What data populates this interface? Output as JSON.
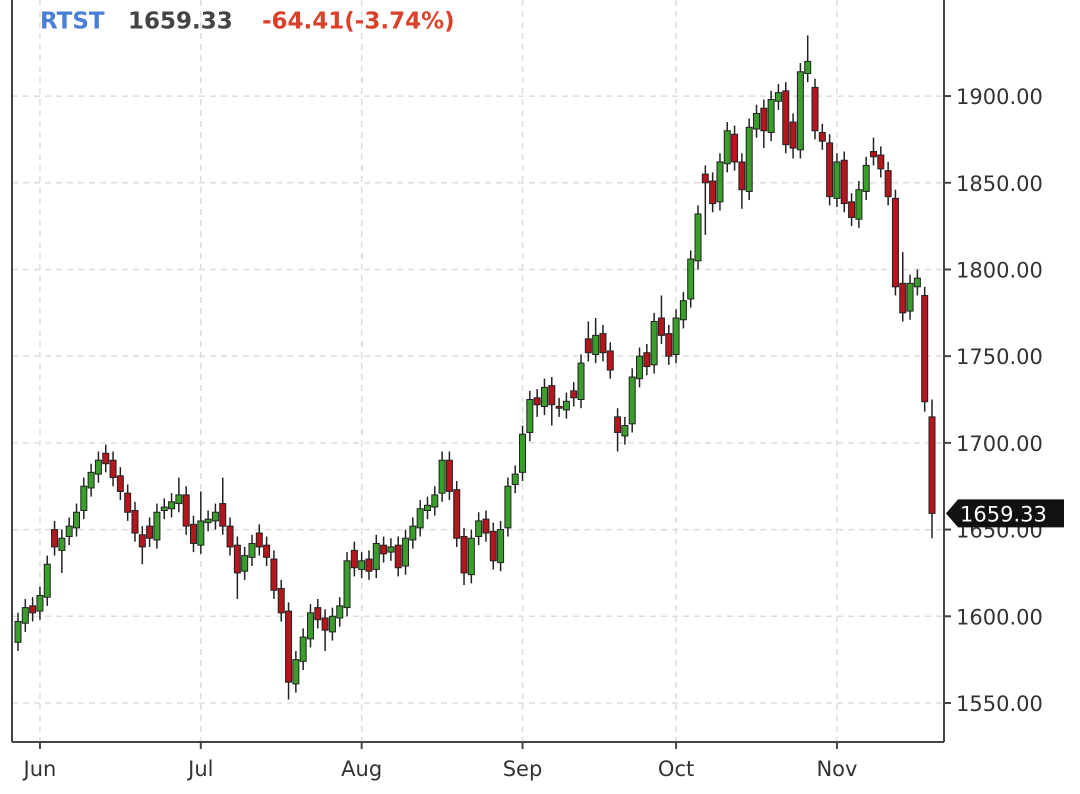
{
  "chart_data": {
    "type": "candlestick",
    "symbol": "RTST",
    "change_label": "-64.41(-3.74%)",
    "categories": [
      null,
      null,
      null,
      "Jun",
      null,
      null,
      null,
      null,
      null,
      null,
      null,
      null,
      null,
      null,
      null,
      null,
      null,
      null,
      null,
      null,
      null,
      null,
      null,
      null,
      null,
      "Jul",
      null,
      null,
      null,
      null,
      null,
      null,
      null,
      null,
      null,
      null,
      null,
      null,
      null,
      null,
      null,
      null,
      null,
      null,
      null,
      null,
      null,
      "Aug",
      null,
      null,
      null,
      null,
      null,
      null,
      null,
      null,
      null,
      null,
      null,
      null,
      null,
      null,
      null,
      null,
      null,
      null,
      null,
      null,
      null,
      "Sep",
      null,
      null,
      null,
      null,
      null,
      null,
      null,
      null,
      null,
      null,
      null,
      null,
      null,
      null,
      null,
      null,
      null,
      null,
      null,
      null,
      "Oct",
      null,
      null,
      null,
      null,
      null,
      null,
      null,
      null,
      null,
      null,
      null,
      null,
      null,
      null,
      null,
      null,
      null,
      null,
      null,
      null,
      null,
      "Nov",
      null,
      null,
      null,
      null,
      null,
      null,
      null,
      null,
      null,
      null,
      null,
      null,
      null
    ],
    "open": [
      1585,
      1596,
      1606,
      1603,
      1611,
      1650,
      1638,
      1646,
      1651,
      1661,
      1674,
      1682,
      1694,
      1690,
      1681,
      1671,
      1661,
      1647,
      1652,
      1644,
      1661,
      1662,
      1665,
      1670,
      1653,
      1641,
      1654,
      1655,
      1665,
      1652,
      1641,
      1626,
      1634,
      1648,
      1641,
      1633,
      1616,
      1603,
      1561,
      1574,
      1587,
      1605,
      1599,
      1591,
      1599,
      1605,
      1638,
      1627,
      1633,
      1627,
      1641,
      1637,
      1641,
      1629,
      1644,
      1651,
      1661,
      1663,
      1671,
      1690,
      1673,
      1646,
      1624,
      1646,
      1656,
      1649,
      1631,
      1651,
      1676,
      1683,
      1706,
      1726,
      1721,
      1733,
      1721,
      1719,
      1730,
      1725,
      1760,
      1751,
      1763,
      1753,
      1715,
      1704,
      1711,
      1737,
      1752,
      1745,
      1772,
      1763,
      1751,
      1771,
      1783,
      1805,
      1855,
      1851,
      1839,
      1861,
      1878,
      1862,
      1845,
      1881,
      1893,
      1879,
      1897,
      1903,
      1885,
      1869,
      1913,
      1905,
      1879,
      1873,
      1841,
      1863,
      1839,
      1829,
      1845,
      1868,
      1866,
      1857,
      1841,
      1792,
      1776,
      1790,
      1785,
      1715
    ],
    "high": [
      1602,
      1610,
      1611,
      1617,
      1635,
      1655,
      1650,
      1657,
      1665,
      1680,
      1688,
      1695,
      1699,
      1695,
      1686,
      1676,
      1666,
      1652,
      1657,
      1665,
      1668,
      1671,
      1680,
      1675,
      1658,
      1672,
      1661,
      1665,
      1680,
      1657,
      1646,
      1640,
      1647,
      1653,
      1646,
      1638,
      1621,
      1608,
      1580,
      1593,
      1607,
      1610,
      1604,
      1605,
      1611,
      1637,
      1643,
      1637,
      1638,
      1647,
      1646,
      1645,
      1646,
      1650,
      1657,
      1667,
      1669,
      1675,
      1695,
      1695,
      1678,
      1651,
      1650,
      1660,
      1661,
      1654,
      1655,
      1680,
      1687,
      1710,
      1730,
      1731,
      1737,
      1738,
      1726,
      1729,
      1735,
      1751,
      1770,
      1772,
      1768,
      1758,
      1720,
      1715,
      1743,
      1755,
      1757,
      1775,
      1785,
      1768,
      1777,
      1787,
      1811,
      1837,
      1860,
      1856,
      1867,
      1885,
      1883,
      1867,
      1887,
      1895,
      1898,
      1903,
      1907,
      1908,
      1890,
      1919,
      1935,
      1910,
      1884,
      1878,
      1867,
      1868,
      1844,
      1851,
      1865,
      1876,
      1871,
      1862,
      1846,
      1810,
      1797,
      1800,
      1790,
      1725
    ],
    "low": [
      1580,
      1591,
      1597,
      1598,
      1606,
      1635,
      1625,
      1641,
      1646,
      1656,
      1669,
      1677,
      1683,
      1675,
      1667,
      1655,
      1643,
      1630,
      1640,
      1639,
      1656,
      1657,
      1660,
      1647,
      1637,
      1636,
      1649,
      1650,
      1647,
      1635,
      1610,
      1621,
      1629,
      1635,
      1629,
      1610,
      1597,
      1552,
      1556,
      1569,
      1582,
      1593,
      1580,
      1586,
      1594,
      1600,
      1623,
      1622,
      1621,
      1622,
      1631,
      1632,
      1623,
      1624,
      1639,
      1646,
      1656,
      1658,
      1666,
      1667,
      1640,
      1618,
      1619,
      1641,
      1643,
      1627,
      1626,
      1646,
      1671,
      1678,
      1701,
      1715,
      1716,
      1710,
      1715,
      1714,
      1721,
      1720,
      1747,
      1746,
      1747,
      1737,
      1695,
      1699,
      1706,
      1732,
      1739,
      1740,
      1757,
      1745,
      1746,
      1766,
      1778,
      1800,
      1820,
      1833,
      1834,
      1856,
      1857,
      1835,
      1840,
      1876,
      1870,
      1874,
      1892,
      1867,
      1864,
      1864,
      1908,
      1875,
      1869,
      1837,
      1836,
      1833,
      1825,
      1824,
      1840,
      1860,
      1853,
      1837,
      1785,
      1770,
      1771,
      1785,
      1718,
      1645
    ],
    "close": [
      1597,
      1605,
      1602,
      1612,
      1630,
      1640,
      1645,
      1652,
      1660,
      1675,
      1683,
      1690,
      1688,
      1680,
      1672,
      1660,
      1648,
      1640,
      1645,
      1660,
      1663,
      1666,
      1670,
      1652,
      1642,
      1655,
      1656,
      1660,
      1652,
      1640,
      1625,
      1635,
      1642,
      1640,
      1634,
      1615,
      1602,
      1562,
      1575,
      1588,
      1602,
      1598,
      1592,
      1600,
      1606,
      1632,
      1628,
      1632,
      1626,
      1642,
      1636,
      1640,
      1628,
      1645,
      1652,
      1662,
      1664,
      1670,
      1690,
      1672,
      1645,
      1625,
      1645,
      1655,
      1648,
      1632,
      1650,
      1675,
      1682,
      1705,
      1725,
      1722,
      1732,
      1722,
      1720,
      1724,
      1726,
      1746,
      1752,
      1762,
      1752,
      1742,
      1706,
      1710,
      1738,
      1750,
      1744,
      1770,
      1762,
      1750,
      1772,
      1782,
      1806,
      1832,
      1850,
      1838,
      1862,
      1880,
      1862,
      1846,
      1882,
      1890,
      1880,
      1898,
      1902,
      1872,
      1870,
      1914,
      1920,
      1880,
      1874,
      1842,
      1862,
      1838,
      1830,
      1846,
      1860,
      1865,
      1858,
      1842,
      1790,
      1775,
      1792,
      1795,
      1723.74,
      1659.33
    ],
    "up_color": "#3a9d2c",
    "down_color": "#b3161c",
    "ylim": [
      1527.5,
      1955.4
    ],
    "yticks": [
      {
        "value": 1550,
        "label": "1550.00"
      },
      {
        "value": 1600,
        "label": "1600.00"
      },
      {
        "value": 1650,
        "label": "1650.00"
      },
      {
        "value": 1700,
        "label": "1700.00"
      },
      {
        "value": 1750,
        "label": "1750.00"
      },
      {
        "value": 1800,
        "label": "1800.00"
      },
      {
        "value": 1850,
        "label": "1850.00"
      },
      {
        "value": 1900,
        "label": "1900.00"
      }
    ],
    "grid": true
  }
}
